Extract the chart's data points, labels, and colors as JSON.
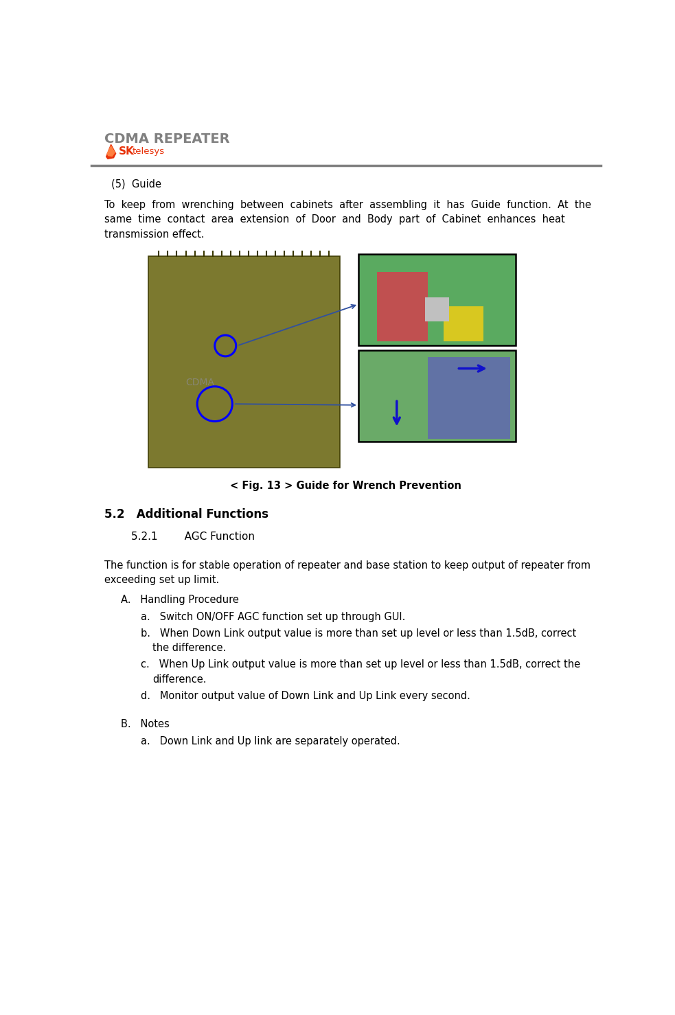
{
  "page_width": 9.83,
  "page_height": 14.78,
  "bg_color": "#ffffff",
  "header_title": "CDMA REPEATER",
  "header_title_color": "#808080",
  "header_line_color": "#808080",
  "fig_caption": "< Fig. 13 > Guide for Wrench Prevention",
  "section_52_title": "5.2   Additional Functions",
  "section_521_title": "5.2.1        AGC Function",
  "text_color": "#000000",
  "font_size_body": 10.5,
  "font_size_header": 14,
  "font_size_section": 12,
  "font_size_subsection": 11
}
